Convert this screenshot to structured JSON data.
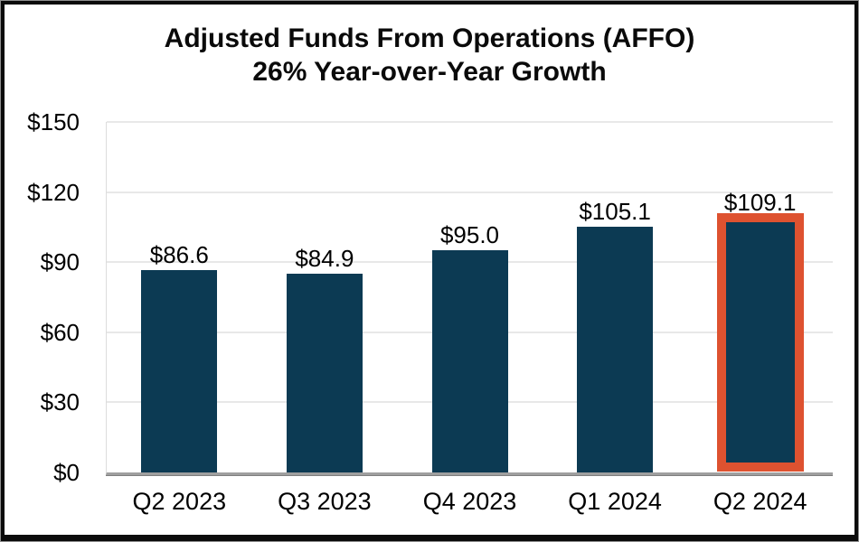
{
  "title": {
    "line1": "Adjusted Funds From Operations (AFFO)",
    "line2": "26% Year-over-Year Growth"
  },
  "chart_data": {
    "type": "bar",
    "title": "Adjusted Funds From Operations (AFFO) 26% Year-over-Year Growth",
    "categories": [
      "Q2 2023",
      "Q3 2023",
      "Q4 2023",
      "Q1 2024",
      "Q2 2024"
    ],
    "values": [
      86.6,
      84.9,
      95.0,
      105.1,
      109.1
    ],
    "data_labels": [
      "$86.6",
      "$84.9",
      "$95.0",
      "$105.1",
      "$109.1"
    ],
    "y_ticks": [
      "$150",
      "$120",
      "$90",
      "$60",
      "$30",
      "$0"
    ],
    "y_tick_values": [
      150,
      120,
      90,
      60,
      30,
      0
    ],
    "ylim": [
      0,
      150
    ],
    "xlabel": "",
    "ylabel": "",
    "grid": true,
    "legend": "none",
    "highlight_index": 4,
    "colors": {
      "bar": "#0C3A53",
      "highlight_outline": "#DE5230",
      "gridline": "#E8E8E8",
      "axis_line": "#9F9F9F",
      "text": "#000000"
    }
  }
}
